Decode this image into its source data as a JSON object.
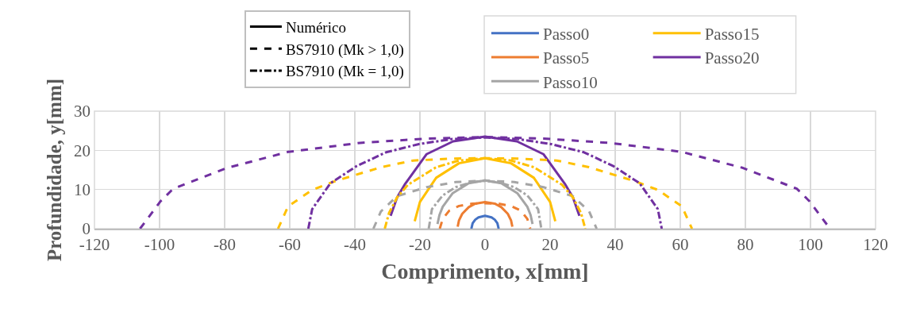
{
  "chart_data": {
    "type": "line",
    "xlabel": "Comprimento, x[mm]",
    "ylabel": "Profundidade, y[mm]",
    "xlim": [
      -120,
      120
    ],
    "ylim": [
      0,
      30
    ],
    "xticks": [
      -120,
      -100,
      -80,
      -60,
      -40,
      -20,
      0,
      20,
      40,
      60,
      80,
      100,
      120
    ],
    "yticks": [
      0,
      10,
      20,
      30
    ],
    "grid": true,
    "legend": "top",
    "marker": "none",
    "series": [
      {
        "name": "Numérico",
        "color": "#000000",
        "line_style": "solid"
      },
      {
        "name": "BS7910 (Mk > 1,0)",
        "color": "#000000",
        "line_style": "dashed"
      },
      {
        "name": "BS7910 (Mk = 1,0)",
        "color": "#000000",
        "line_style": "dashdot"
      },
      {
        "name": "Passo0",
        "color": "#4472c4",
        "line_style": "solid",
        "x": [
          -4.2,
          -3.8,
          -3,
          -2,
          0,
          2,
          3,
          3.8,
          4.2
        ],
        "values": [
          0,
          1.4,
          2.3,
          2.9,
          3.3,
          2.9,
          2.3,
          1.4,
          0
        ]
      },
      {
        "name": "Passo5",
        "color": "#ed7d31",
        "line_style": "solid",
        "x": [
          -8.4,
          -8,
          -7,
          -5,
          -3,
          0,
          3,
          5,
          7,
          8,
          8.4
        ],
        "values": [
          0.5,
          2.1,
          3.8,
          5.5,
          6.4,
          6.8,
          6.4,
          5.5,
          3.8,
          2.1,
          0.5
        ]
      },
      {
        "name": "Passo10",
        "color": "#a5a5a5",
        "line_style": "solid",
        "x": [
          -14.6,
          -14,
          -13,
          -10,
          -5,
          0,
          5,
          10,
          13,
          14,
          14.6
        ],
        "values": [
          1.2,
          3.5,
          5.6,
          9,
          11.6,
          12.3,
          11.6,
          9,
          5.6,
          3.5,
          1.2
        ]
      },
      {
        "name": "Passo15",
        "color": "#ffc000",
        "line_style": "solid",
        "x": [
          -21.6,
          -20,
          -15,
          -8,
          0,
          8,
          15,
          20,
          21.6
        ],
        "values": [
          1.9,
          6.8,
          13,
          16.7,
          18,
          16.7,
          13,
          6.8,
          1.9
        ]
      },
      {
        "name": "Passo20",
        "color": "#7030a0",
        "line_style": "solid",
        "x": [
          -29,
          -27,
          -24.5,
          -18,
          -9.8,
          0,
          9.8,
          18,
          24.5,
          27,
          29
        ],
        "values": [
          3.3,
          8,
          11.5,
          19,
          22.3,
          23.5,
          22.3,
          19,
          11.5,
          8,
          3.3
        ]
      },
      {
        "color": "#ed7d31",
        "line_style": "dashed",
        "x": [
          -13.9,
          -13,
          -11,
          -8,
          -4,
          0,
          4,
          8,
          11,
          13,
          13.9
        ],
        "values": [
          0,
          2.5,
          4.6,
          5.8,
          6.4,
          6.5,
          6.4,
          5.8,
          4.6,
          2.5,
          0
        ]
      },
      {
        "color": "#a5a5a5",
        "line_style": "dashdot",
        "x": [
          -17.3,
          -16.3,
          -13,
          -9,
          -4,
          0,
          4,
          9,
          13,
          16.3,
          17.3
        ],
        "values": [
          0,
          5,
          8.5,
          10.6,
          11.9,
          12.2,
          11.9,
          10.6,
          8.5,
          5,
          0
        ]
      },
      {
        "color": "#a5a5a5",
        "line_style": "dashed",
        "x": [
          -34.3,
          -32,
          -27,
          -18,
          -9,
          0,
          9,
          18,
          27,
          32,
          34.3
        ],
        "values": [
          0,
          4.4,
          8.3,
          10.6,
          11.9,
          12.3,
          11.9,
          10.6,
          8.3,
          4.4,
          0
        ]
      },
      {
        "color": "#ffc000",
        "line_style": "dashdot",
        "x": [
          -30.8,
          -29.5,
          -27,
          -23.7,
          -15,
          -8,
          0,
          8,
          15,
          23.7,
          27,
          29.5,
          30.8
        ],
        "values": [
          0,
          4,
          8,
          11.2,
          15.7,
          17.4,
          18,
          17.4,
          15.7,
          11.2,
          8,
          4,
          0
        ]
      },
      {
        "color": "#ffc000",
        "line_style": "dashed",
        "x": [
          -63.6,
          -60.5,
          -53.1,
          -45.8,
          -31.9,
          -22.1,
          -10,
          0,
          10,
          22.1,
          31.9,
          45.8,
          53.1,
          60.5,
          63.6
        ],
        "values": [
          0,
          5.7,
          9.9,
          12.2,
          15.7,
          17.4,
          17.9,
          18,
          17.9,
          17.4,
          15.7,
          12.2,
          9.9,
          5.7,
          0
        ]
      },
      {
        "color": "#7030a0",
        "line_style": "dashdot",
        "x": [
          -54.3,
          -53.1,
          -47.5,
          -39.4,
          -30.4,
          -20.3,
          -10,
          0,
          10,
          20.3,
          30.4,
          39.4,
          47.5,
          53.1,
          54.3
        ],
        "values": [
          0,
          5,
          11.6,
          16,
          19.5,
          21.6,
          22.9,
          23.3,
          22.9,
          21.6,
          19.5,
          16,
          11.6,
          5,
          0
        ]
      },
      {
        "color": "#7030a0",
        "line_style": "dashed",
        "x": [
          -106,
          -99.7,
          -95.8,
          -79.3,
          -60.5,
          -38.4,
          -17.9,
          0,
          17.9,
          38.4,
          60.5,
          79.3,
          95.8,
          99.7,
          106
        ],
        "values": [
          0,
          7,
          10.2,
          15.5,
          19.6,
          21.9,
          23,
          23.4,
          23,
          21.9,
          19.6,
          15.5,
          10.2,
          7,
          0
        ]
      }
    ]
  }
}
